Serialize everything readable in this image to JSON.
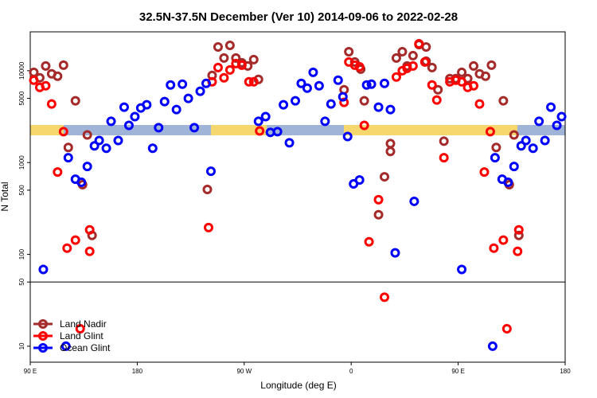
{
  "chart_data": {
    "type": "scatter",
    "title": "32.5N-37.5N December (Ver 10)   2014-09-06 to 2022-02-28",
    "x_label": "Longitude (deg E)",
    "y_label": "N Total",
    "xlim": [
      90,
      540
    ],
    "xticks": [
      {
        "value": 90,
        "label": "90 E"
      },
      {
        "value": 180,
        "label": "180"
      },
      {
        "value": 270,
        "label": "90 W"
      },
      {
        "value": 360,
        "label": "0"
      },
      {
        "value": 450,
        "label": "90 E"
      },
      {
        "value": 540,
        "label": "180"
      }
    ],
    "ylim": [
      6.7,
      26500
    ],
    "log_y": true,
    "panel_split": 50,
    "yticks": [
      10,
      50,
      100,
      500,
      1000,
      5000,
      10000
    ],
    "legend": "lower left",
    "series": [
      {
        "name": "Land Nadir",
        "color": "#a52a2a",
        "x": [
          93,
          98,
          103,
          108,
          113,
          118,
          128,
          122,
          138,
          134,
          142,
          239,
          243,
          248,
          253,
          258,
          263,
          268,
          273,
          278,
          282,
          354,
          358,
          363,
          368,
          371,
          383,
          388,
          393,
          393,
          398,
          403,
          407,
          412,
          417,
          423,
          423,
          428,
          433,
          438,
          443,
          448,
          453,
          458,
          463,
          468,
          473,
          478,
          482,
          488,
          493,
          501,
          497
        ],
        "values": [
          9600,
          8360,
          11270,
          9240,
          8710,
          11480,
          4700,
          1460,
          2000,
          574,
          161,
          509,
          8880,
          18150,
          13740,
          18880,
          13740,
          12190,
          11270,
          13210,
          8040,
          6210,
          16100,
          12450,
          10400,
          4700,
          270,
          700,
          1610,
          1320,
          13740,
          16100,
          11270,
          14580,
          19240,
          18150,
          12680,
          10820,
          6210,
          1710,
          8200,
          8200,
          9600,
          8200,
          11270,
          9240,
          8710,
          11480,
          1460,
          4700,
          574,
          161,
          2000
        ]
      },
      {
        "name": "Land Glint",
        "color": "#ff0000",
        "x": [
          93,
          98,
          103,
          108,
          113,
          118,
          121,
          128,
          140,
          140,
          240,
          243,
          248,
          253,
          258,
          263,
          268,
          274,
          278,
          283,
          354,
          358,
          363,
          367,
          371,
          375,
          383,
          388,
          398,
          403,
          407,
          412,
          417,
          422,
          428,
          432,
          438,
          443,
          448,
          453,
          458,
          463,
          468,
          472,
          477,
          480,
          488,
          500,
          501,
          132,
          491
        ],
        "values": [
          7880,
          6590,
          6860,
          4340,
          788,
          2170,
          117,
          143,
          185,
          108,
          196,
          7570,
          10820,
          8360,
          10200,
          11960,
          11480,
          7570,
          7570,
          2210,
          4520,
          12450,
          11480,
          11040,
          2540,
          137,
          394,
          34.2,
          8530,
          10000,
          10610,
          11270,
          19630,
          12450,
          7000,
          4800,
          1130,
          7570,
          7880,
          7570,
          6590,
          6860,
          4340,
          788,
          2170,
          117,
          143,
          108,
          185,
          15.5,
          15.5
        ]
      },
      {
        "name": "Ocean Glint",
        "color": "#0000ff",
        "x": [
          101,
          122,
          128,
          133,
          138,
          144,
          148,
          154,
          158,
          164,
          169,
          173,
          178,
          183,
          188,
          193,
          198,
          203,
          208,
          213,
          218,
          223,
          228,
          233,
          238,
          242,
          282,
          288,
          292,
          298,
          303,
          308,
          313,
          318,
          323,
          328,
          333,
          338,
          343,
          349,
          353,
          357,
          362,
          367,
          373,
          377,
          383,
          388,
          393,
          397,
          413,
          453,
          481,
          487,
          492,
          497,
          503,
          507,
          513,
          518,
          523,
          528,
          533,
          537,
          120,
          479
        ],
        "values": [
          68.6,
          1130,
          659,
          609,
          906,
          1520,
          1740,
          1430,
          2810,
          1740,
          4010,
          2540,
          3160,
          3930,
          4260,
          1430,
          2400,
          4610,
          7000,
          3780,
          7130,
          4990,
          2400,
          5970,
          7280,
          804,
          2810,
          3160,
          2130,
          2170,
          4260,
          1640,
          4700,
          7280,
          6460,
          9610,
          6850,
          2810,
          4340,
          7880,
          5200,
          1920,
          585,
          646,
          7000,
          7130,
          4010,
          7280,
          3780,
          104,
          378,
          68.6,
          1130,
          659,
          609,
          906,
          1520,
          1740,
          1430,
          2810,
          1740,
          4010,
          2540,
          3160,
          10,
          10
        ]
      }
    ]
  }
}
